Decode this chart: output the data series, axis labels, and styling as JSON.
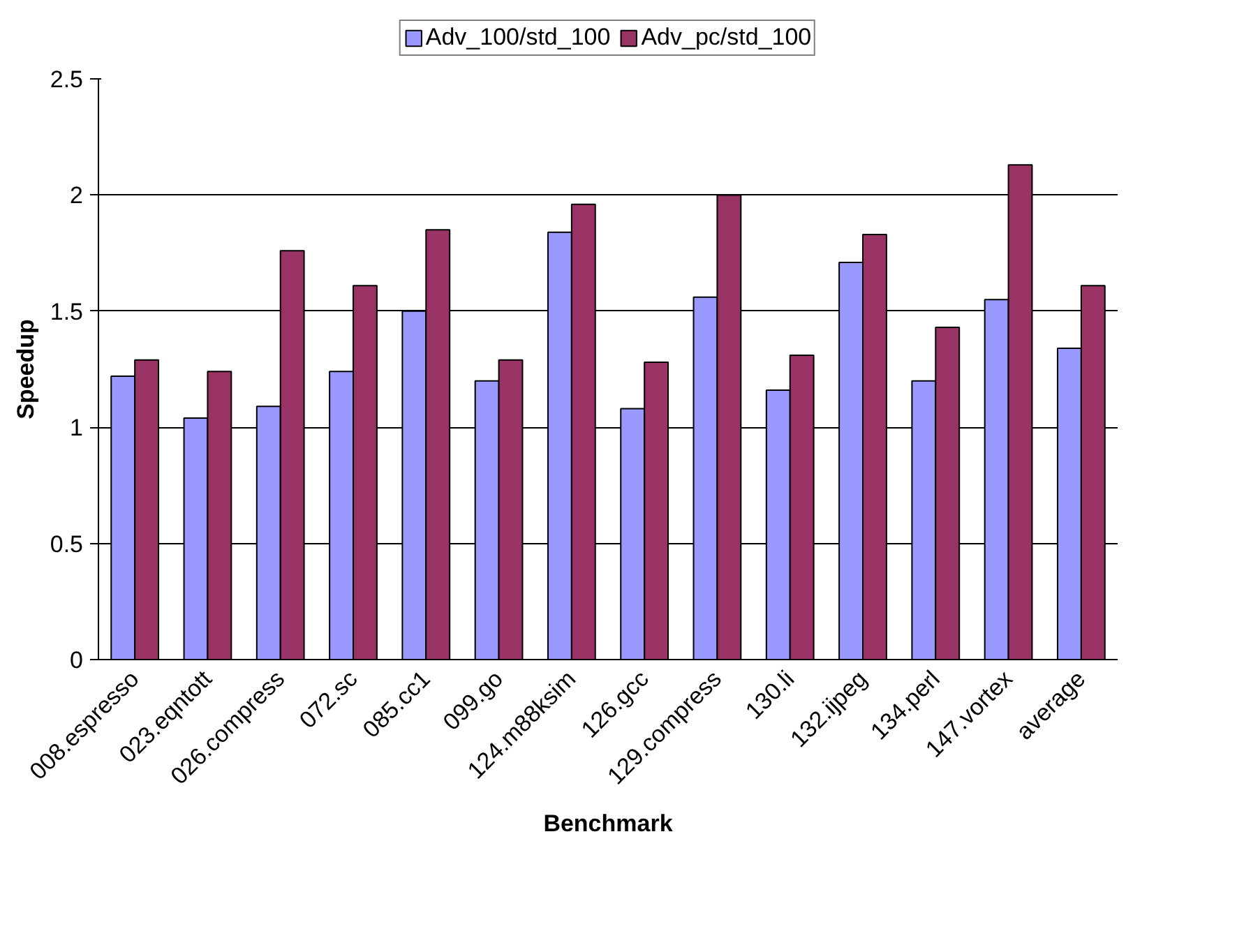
{
  "chart_data": {
    "type": "bar",
    "xlabel": "Benchmark",
    "ylabel": "Speedup",
    "categories": [
      "008.espresso",
      "023.eqntott",
      "026.compress",
      "072.sc",
      "085.cc1",
      "099.go",
      "124.m88ksim",
      "126.gcc",
      "129.compress",
      "130.li",
      "132.ijpeg",
      "134.perl",
      "147.vortex",
      "average"
    ],
    "series": [
      {
        "name": "Adv_100/std_100",
        "color": "#9999ff",
        "values": [
          1.22,
          1.04,
          1.09,
          1.24,
          1.5,
          1.2,
          1.84,
          1.08,
          1.56,
          1.16,
          1.71,
          1.2,
          1.55,
          1.34
        ]
      },
      {
        "name": "Adv_pc/std_100",
        "color": "#993366",
        "values": [
          1.29,
          1.24,
          1.76,
          1.61,
          1.85,
          1.29,
          1.96,
          1.28,
          2.0,
          1.31,
          1.83,
          1.43,
          2.13,
          1.61
        ]
      }
    ],
    "ylim": [
      0,
      2.5
    ],
    "yticks": [
      0,
      0.5,
      1,
      1.5,
      2,
      2.5
    ],
    "grid": "y",
    "legend": "top"
  }
}
